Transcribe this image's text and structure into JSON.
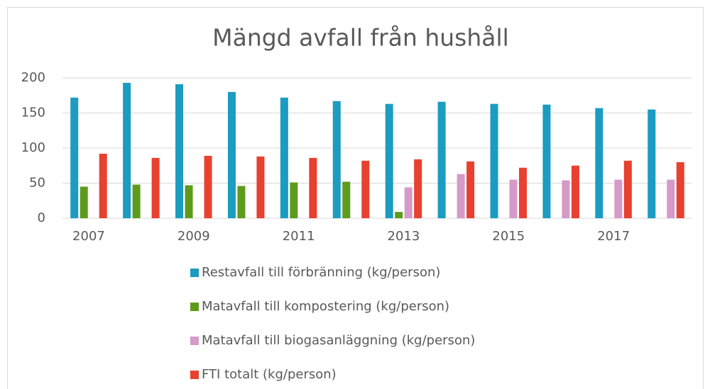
{
  "chart_data": {
    "type": "bar",
    "title": "Mängd avfall från hushåll",
    "categories": [
      "2007",
      null,
      "2009",
      null,
      "2011",
      null,
      "2013",
      null,
      "2015",
      null,
      "2017",
      null
    ],
    "series": [
      {
        "name": "Restavfall till förbränning (kg/person)",
        "color": "#1b9cc0",
        "values": [
          172,
          193,
          191,
          180,
          172,
          167,
          163,
          166,
          163,
          162,
          157,
          155
        ]
      },
      {
        "name": "Matavfall till kompostering (kg/person)",
        "color": "#5e9b1c",
        "values": [
          45,
          48,
          47,
          46,
          51,
          52,
          9,
          null,
          null,
          null,
          null,
          null
        ]
      },
      {
        "name": "Matavfall till biogasanläggning (kg/person)",
        "color": "#d69ac9",
        "values": [
          null,
          null,
          null,
          null,
          null,
          null,
          44,
          63,
          55,
          54,
          55,
          55
        ]
      },
      {
        "name": "FTI totalt (kg/person)",
        "color": "#e8412f",
        "values": [
          92,
          86,
          89,
          88,
          86,
          82,
          84,
          81,
          72,
          75,
          82,
          80
        ]
      }
    ],
    "ylim": [
      0,
      200
    ],
    "yticks": [
      0,
      50,
      100,
      150,
      200
    ],
    "grid": true,
    "legend": "bottom"
  }
}
